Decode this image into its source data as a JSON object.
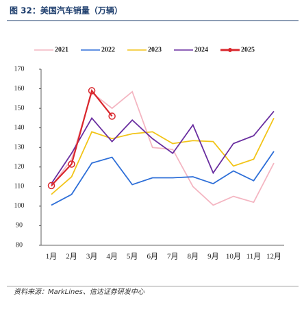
{
  "chart_data": {
    "type": "line",
    "title": "图 32：美国汽车销量（万辆）",
    "source": "资料来源：MarkLines、信达证券研发中心",
    "categories": [
      "1月",
      "2月",
      "3月",
      "4月",
      "5月",
      "6月",
      "7月",
      "8月",
      "9月",
      "10月",
      "11月",
      "12月"
    ],
    "series": [
      {
        "name": "2021",
        "color": "#f4b6c2",
        "values": [
          110,
          124,
          158,
          150,
          158.5,
          130,
          129,
          110,
          100.5,
          105,
          102,
          122
        ]
      },
      {
        "name": "2022",
        "color": "#2e6fd8",
        "values": [
          100.5,
          106,
          122,
          125,
          111,
          114.5,
          114.5,
          115,
          111.5,
          118,
          113,
          128
        ]
      },
      {
        "name": "2023",
        "color": "#f2c418",
        "values": [
          106,
          115,
          138,
          134.5,
          137,
          138,
          132,
          133.5,
          133,
          120.5,
          124,
          145
        ]
      },
      {
        "name": "2024",
        "color": "#6a2fa0",
        "values": [
          111.5,
          127,
          145,
          133,
          144,
          134.5,
          127,
          141.5,
          117,
          132,
          136,
          148.5
        ]
      },
      {
        "name": "2025",
        "color": "#d9262c",
        "values": [
          110.5,
          121.5,
          159,
          146,
          null,
          null,
          null,
          null,
          null,
          null,
          null,
          null
        ],
        "markers": true
      }
    ],
    "ylim": [
      80,
      170
    ],
    "yticks": [
      80,
      90,
      100,
      110,
      120,
      130,
      140,
      150,
      160,
      170
    ]
  }
}
